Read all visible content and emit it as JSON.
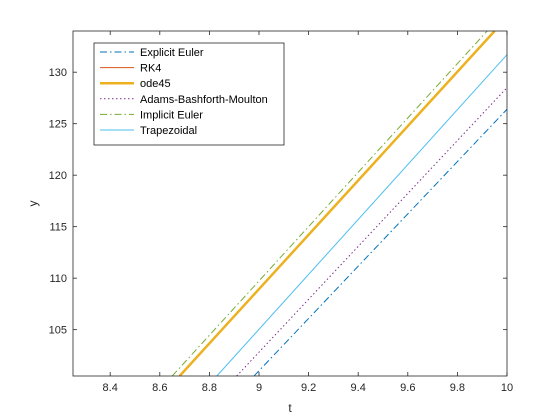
{
  "chart_data": {
    "type": "line",
    "title": "",
    "xlabel": "t",
    "ylabel": "y",
    "xlim": [
      8.25,
      10
    ],
    "ylim": [
      100.5,
      134
    ],
    "xticks": [
      8.4,
      8.6,
      8.8,
      9,
      9.2,
      9.4,
      9.6,
      9.8,
      10
    ],
    "xtick_labels": [
      "8.4",
      "8.6",
      "8.8",
      "9",
      "9.2",
      "9.4",
      "9.6",
      "9.8",
      "10"
    ],
    "yticks": [
      105,
      110,
      115,
      120,
      125,
      130
    ],
    "ytick_labels": [
      "105",
      "110",
      "115",
      "120",
      "125",
      "130"
    ],
    "grid": false,
    "legend_position": "top-left",
    "series": [
      {
        "name": "Explicit Euler",
        "color": "#0072BD",
        "style": "dash-dot",
        "width": 1,
        "points": [
          [
            8.98,
            100.5
          ],
          [
            10,
            126.4
          ]
        ]
      },
      {
        "name": "RK4",
        "color": "#D95319",
        "style": "solid",
        "width": 1,
        "points": [
          [
            8.68,
            100.5
          ],
          [
            9.95,
            134
          ]
        ]
      },
      {
        "name": "ode45",
        "color": "#EDB120",
        "style": "solid",
        "width": 2.5,
        "points": [
          [
            8.68,
            100.5
          ],
          [
            9.95,
            134
          ]
        ]
      },
      {
        "name": "Adams-Bashforth-Moulton",
        "color": "#7E2F8E",
        "style": "dotted",
        "width": 1,
        "points": [
          [
            8.91,
            100.5
          ],
          [
            10,
            128.5
          ]
        ]
      },
      {
        "name": "Implicit Euler",
        "color": "#77AC30",
        "style": "dash-dot",
        "width": 1,
        "points": [
          [
            8.65,
            100.5
          ],
          [
            9.92,
            134
          ]
        ]
      },
      {
        "name": "Trapezoidal",
        "color": "#4DBEEE",
        "style": "solid",
        "width": 1,
        "points": [
          [
            8.83,
            100.5
          ],
          [
            10,
            131.7
          ]
        ]
      }
    ]
  }
}
